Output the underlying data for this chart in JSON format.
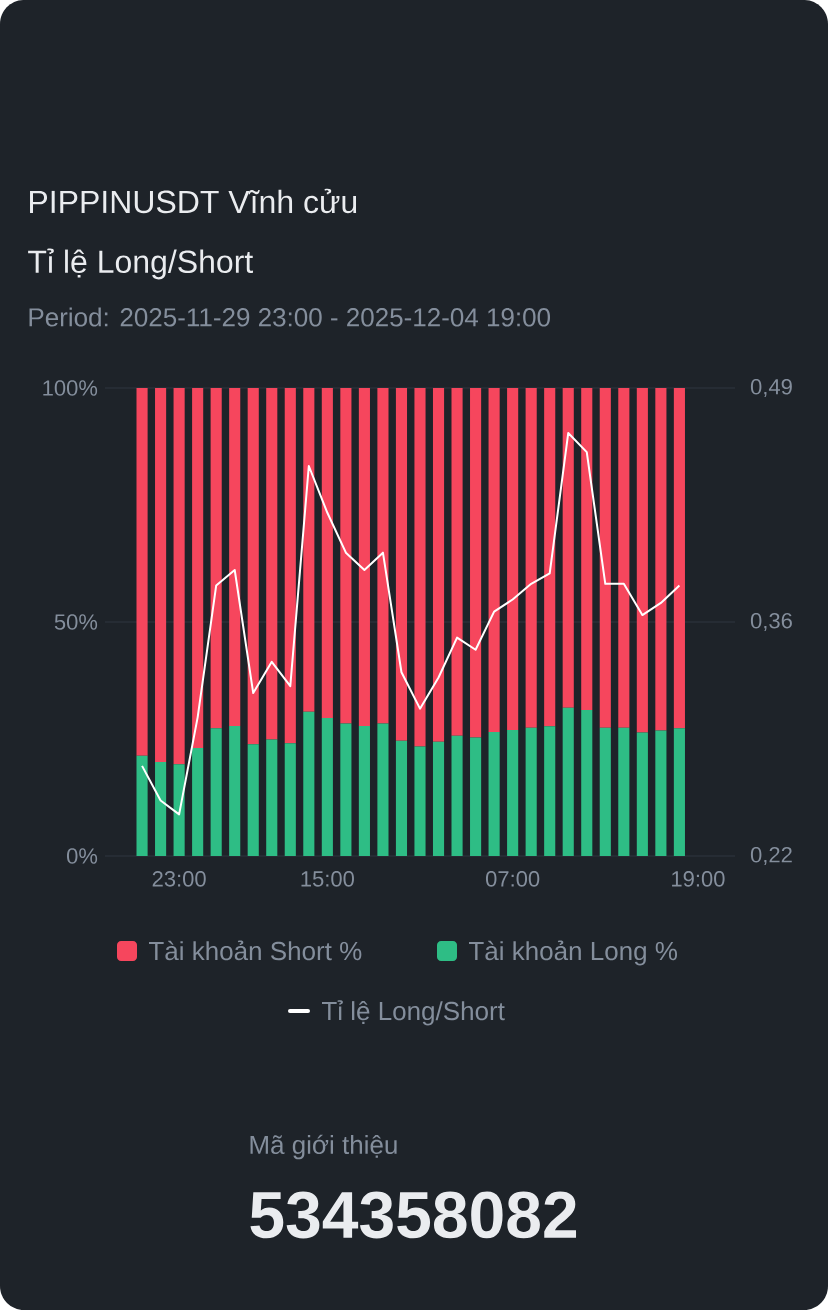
{
  "chart_data": {
    "type": "bar",
    "title": "PIPPINUSDT Vĩnh cửu",
    "subtitle": "Tỉ lệ Long/Short",
    "annotations": [
      "Period: 2025-11-29 23:00 - 2025-12-04 19:00",
      "Mã giới thiệu",
      "534358082"
    ],
    "categories": [
      null,
      null,
      "23:00",
      null,
      null,
      null,
      null,
      null,
      null,
      null,
      "15:00",
      null,
      null,
      null,
      null,
      null,
      null,
      null,
      null,
      null,
      "07:00",
      null,
      null,
      null,
      null,
      null,
      null,
      null,
      null,
      null,
      "19:00"
    ],
    "series": [
      {
        "name": "Tài khoản Long %",
        "color": "#2ebd85",
        "values": [
          21.4,
          20.1,
          19.6,
          23.1,
          27.3,
          27.8,
          23.9,
          24.9,
          24.1,
          30.8,
          29.5,
          28.3,
          27.8,
          28.3,
          24.6,
          23.4,
          24.4,
          25.7,
          25.3,
          26.5,
          26.9,
          27.4,
          27.7,
          31.7,
          31.2,
          27.4,
          27.4,
          26.4,
          26.8,
          27.3,
          null
        ]
      },
      {
        "name": "Tài khoản Short %",
        "color": "#f6465d",
        "values": [
          78.6,
          79.9,
          80.4,
          76.9,
          72.7,
          72.2,
          76.1,
          75.1,
          75.9,
          69.2,
          70.5,
          71.7,
          72.2,
          71.7,
          75.4,
          76.6,
          75.6,
          74.3,
          74.7,
          73.5,
          73.1,
          72.6,
          72.3,
          68.3,
          68.8,
          72.6,
          72.6,
          73.6,
          73.2,
          72.7,
          null
        ]
      },
      {
        "name": "Tỉ lệ Long/Short",
        "color": "#ffffff",
        "type": "line",
        "axis": "y2",
        "values": [
          0.272,
          0.252,
          0.244,
          0.3,
          0.376,
          0.385,
          0.314,
          0.332,
          0.318,
          0.445,
          0.418,
          0.395,
          0.385,
          0.395,
          0.326,
          0.305,
          0.323,
          0.346,
          0.339,
          0.361,
          0.368,
          0.377,
          0.383,
          0.464,
          0.453,
          0.377,
          0.377,
          0.359,
          0.366,
          0.376,
          null
        ]
      }
    ],
    "stacked": true,
    "ylim": [
      0,
      100
    ],
    "yticks": [
      {
        "value": 0,
        "label": "0%"
      },
      {
        "value": 50,
        "label": "50%"
      },
      {
        "value": 100,
        "label": "100%"
      }
    ],
    "y2lim": [
      0.22,
      0.49
    ],
    "y2ticks": [
      {
        "value": 0.22,
        "label": "0,22"
      },
      {
        "value": 0.355,
        "label": "0,36"
      },
      {
        "value": 0.49,
        "label": "0,49"
      }
    ],
    "grid": "y",
    "legend": "bottom"
  }
}
